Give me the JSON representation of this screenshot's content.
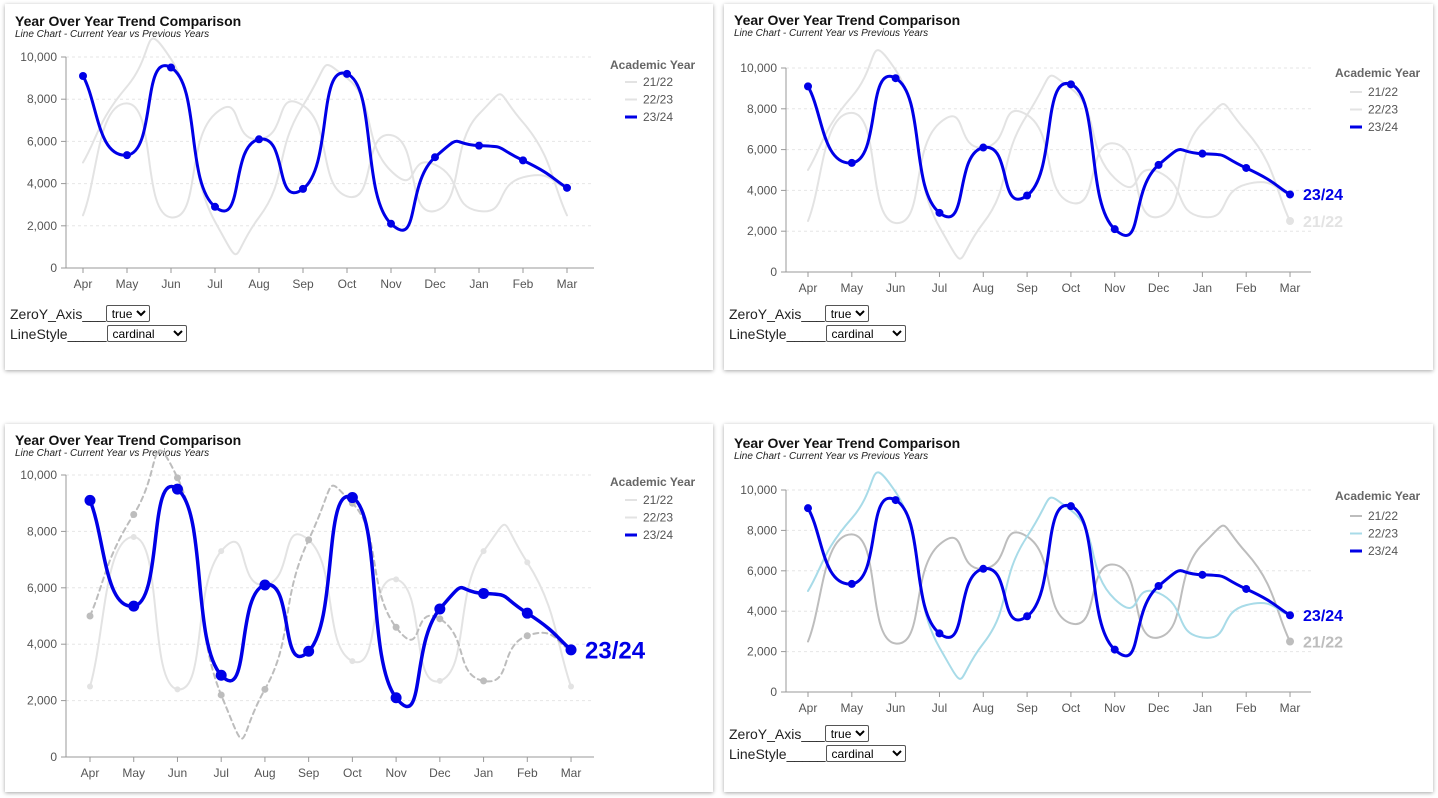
{
  "panels": [
    {
      "title": "Year Over Year Trend Comparison",
      "subtitle": "Line Chart - Current Year vs Previous Years",
      "controls": {
        "zero_label": "ZeroY_Axis___",
        "zero_value": "true",
        "zero_options": [
          "true",
          "false"
        ],
        "style_label": "LineStyle_____",
        "style_value": "cardinal",
        "style_options": [
          "cardinal",
          "linear",
          "monotone",
          "step"
        ]
      }
    },
    {
      "title": "Year Over Year Trend Comparison",
      "subtitle": "Line Chart - Current Year vs Previous Years",
      "controls": {
        "zero_label": "ZeroY_Axis___",
        "zero_value": "true",
        "zero_options": [
          "true",
          "false"
        ],
        "style_label": "LineStyle_____",
        "style_value": "cardinal",
        "style_options": [
          "cardinal",
          "linear",
          "monotone",
          "step"
        ]
      }
    },
    {
      "title": "Year Over Year Trend Comparison",
      "subtitle": "Line Chart - Current Year vs Previous Years"
    },
    {
      "title": "Year Over Year Trend Comparison",
      "subtitle": "Line Chart - Current Year vs Previous Years",
      "controls": {
        "zero_label": "ZeroY_Axis___",
        "zero_value": "true",
        "zero_options": [
          "true",
          "false"
        ],
        "style_label": "LineStyle_____",
        "style_value": "cardinal",
        "style_options": [
          "cardinal",
          "linear",
          "monotone",
          "step"
        ]
      }
    }
  ],
  "colors": {
    "current": "#0000e6",
    "grey_light": "#e3e3e3",
    "grey_mid": "#bdbdbd",
    "light_blue": "#a8dbe8",
    "axis": "#999999",
    "tick_text": "#555555",
    "grid": "#e6e6e6"
  },
  "chart_data": [
    {
      "type": "line",
      "title": "Year Over Year Trend Comparison",
      "subtitle": "Line Chart - Current Year vs Previous Years",
      "categories": [
        "Apr",
        "May",
        "Jun",
        "Jul",
        "Aug",
        "Sep",
        "Oct",
        "Nov",
        "Dec",
        "Jan",
        "Feb",
        "Mar"
      ],
      "y_ticks": [
        "0",
        "2,000",
        "4,000",
        "6,000",
        "8,000",
        "10,000"
      ],
      "ylim": [
        0,
        10000
      ],
      "grid": true,
      "legend_title": "Academic Year",
      "legend_position": "top-right",
      "series": [
        {
          "name": "21/22",
          "values": [
            2500,
            7800,
            2400,
            7300,
            6100,
            7700,
            3400,
            6300,
            2700,
            7300,
            6900,
            2500
          ]
        },
        {
          "name": "22/23",
          "values": [
            5000,
            8600,
            9900,
            2200,
            2400,
            7700,
            9000,
            4600,
            4900,
            2700,
            4300,
            3800
          ]
        },
        {
          "name": "23/24",
          "values": [
            9100,
            5350,
            9500,
            2900,
            6100,
            3750,
            9200,
            2100,
            5250,
            5800,
            5100,
            3800
          ]
        }
      ]
    },
    {
      "type": "line",
      "title": "Year Over Year Trend Comparison",
      "subtitle": "Line Chart - Current Year vs Previous Years",
      "categories": [
        "Apr",
        "May",
        "Jun",
        "Jul",
        "Aug",
        "Sep",
        "Oct",
        "Nov",
        "Dec",
        "Jan",
        "Feb",
        "Mar"
      ],
      "y_ticks": [
        "0",
        "2,000",
        "4,000",
        "6,000",
        "8,000",
        "10,000"
      ],
      "ylim": [
        0,
        10000
      ],
      "grid": true,
      "legend_title": "Academic Year",
      "legend_position": "top-right",
      "end_labels": [
        "23/24",
        "21/22"
      ],
      "series": [
        {
          "name": "21/22",
          "values": [
            2500,
            7800,
            2400,
            7300,
            6100,
            7700,
            3400,
            6300,
            2700,
            7300,
            6900,
            2500
          ]
        },
        {
          "name": "22/23",
          "values": [
            5000,
            8600,
            9900,
            2200,
            2400,
            7700,
            9000,
            4600,
            4900,
            2700,
            4300,
            3800
          ]
        },
        {
          "name": "23/24",
          "values": [
            9100,
            5350,
            9500,
            2900,
            6100,
            3750,
            9200,
            2100,
            5250,
            5800,
            5100,
            3800
          ]
        }
      ]
    },
    {
      "type": "line",
      "title": "Year Over Year Trend Comparison",
      "subtitle": "Line Chart - Current Year vs Previous Years",
      "categories": [
        "Apr",
        "May",
        "Jun",
        "Jul",
        "Aug",
        "Sep",
        "Oct",
        "Nov",
        "Dec",
        "Jan",
        "Feb",
        "Mar"
      ],
      "y_ticks": [
        "0",
        "2,000",
        "4,000",
        "6,000",
        "8,000",
        "10,000"
      ],
      "ylim": [
        0,
        10000
      ],
      "grid": true,
      "legend_title": "Academic Year",
      "legend_position": "top-right",
      "end_labels": [
        "23/24"
      ],
      "series": [
        {
          "name": "21/22",
          "values": [
            2500,
            7800,
            2400,
            7300,
            6100,
            7700,
            3400,
            6300,
            2700,
            7300,
            6900,
            2500
          ]
        },
        {
          "name": "22/23",
          "values": [
            5000,
            8600,
            9900,
            2200,
            2400,
            7700,
            9000,
            4600,
            4900,
            2700,
            4300,
            3800
          ]
        },
        {
          "name": "23/24",
          "values": [
            9100,
            5350,
            9500,
            2900,
            6100,
            3750,
            9200,
            2100,
            5250,
            5800,
            5100,
            3800
          ]
        }
      ]
    },
    {
      "type": "line",
      "title": "Year Over Year Trend Comparison",
      "subtitle": "Line Chart - Current Year vs Previous Years",
      "categories": [
        "Apr",
        "May",
        "Jun",
        "Jul",
        "Aug",
        "Sep",
        "Oct",
        "Nov",
        "Dec",
        "Jan",
        "Feb",
        "Mar"
      ],
      "y_ticks": [
        "0",
        "2,000",
        "4,000",
        "6,000",
        "8,000",
        "10,000"
      ],
      "ylim": [
        0,
        10000
      ],
      "grid": true,
      "legend_title": "Academic Year",
      "legend_position": "top-right",
      "end_labels": [
        "23/24",
        "21/22"
      ],
      "series": [
        {
          "name": "21/22",
          "values": [
            2500,
            7800,
            2400,
            7300,
            6100,
            7700,
            3400,
            6300,
            2700,
            7300,
            6900,
            2500
          ]
        },
        {
          "name": "22/23",
          "values": [
            5000,
            8600,
            9900,
            2200,
            2400,
            7700,
            9000,
            4600,
            4900,
            2700,
            4300,
            3800
          ]
        },
        {
          "name": "23/24",
          "values": [
            9100,
            5350,
            9500,
            2900,
            6100,
            3750,
            9200,
            2100,
            5250,
            5800,
            5100,
            3800
          ]
        }
      ]
    }
  ]
}
